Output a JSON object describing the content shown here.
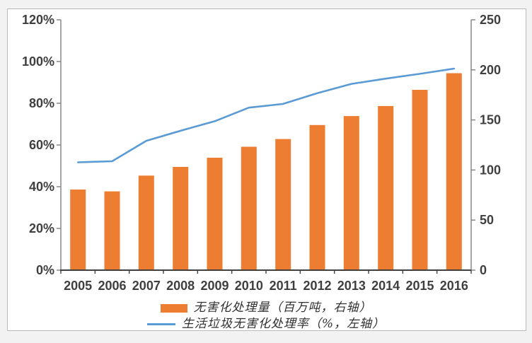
{
  "chart_data": {
    "type": "bar",
    "subtype": "combo-bar-line-dual-axis",
    "categories": [
      "2005",
      "2006",
      "2007",
      "2008",
      "2009",
      "2010",
      "2011",
      "2012",
      "2013",
      "2014",
      "2015",
      "2016"
    ],
    "series": [
      {
        "name": "无害化处理量（百万吨，右轴）",
        "type": "bar",
        "axis": "right",
        "color": "#ED7D31",
        "values": [
          80.5,
          78.7,
          94.4,
          103.1,
          112.3,
          123.2,
          130.9,
          144.9,
          153.9,
          163.9,
          180.1,
          196.7
        ]
      },
      {
        "name": "生活垃圾无害化处理率（%，左轴）",
        "type": "line",
        "axis": "left",
        "color": "#5B9BD5",
        "values": [
          51.7,
          52.2,
          62.0,
          66.8,
          71.4,
          77.9,
          79.7,
          84.8,
          89.3,
          91.8,
          94.1,
          96.6
        ]
      }
    ],
    "left_axis": {
      "min": 0,
      "max": 120,
      "step": 20,
      "tick_labels": [
        "0%",
        "20%",
        "40%",
        "60%",
        "80%",
        "100%",
        "120%"
      ]
    },
    "right_axis": {
      "min": 0,
      "max": 250,
      "step": 50,
      "tick_labels": [
        "0",
        "50",
        "100",
        "150",
        "200",
        "250"
      ]
    },
    "title": "",
    "xlabel": "",
    "ylabel": "",
    "grid": false,
    "legend_position": "bottom"
  },
  "colors": {
    "bar": "#ED7D31",
    "line": "#5B9BD5",
    "axis_light": "#808080",
    "axis_dark": "#404040",
    "text": "#3f3f3f",
    "frame_border": "#b9b9b9"
  }
}
